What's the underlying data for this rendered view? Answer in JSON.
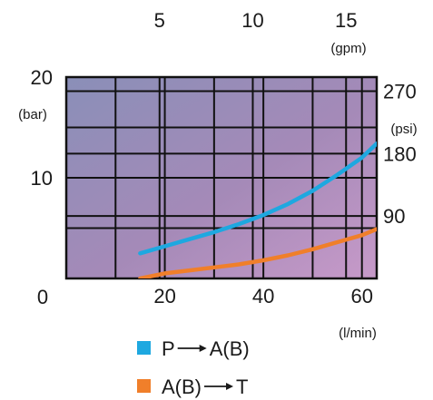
{
  "chart_data": {
    "type": "line",
    "x_bottom": {
      "label": "(l/min)",
      "ticks": [
        "20",
        "40",
        "60"
      ],
      "range": [
        0,
        63
      ]
    },
    "x_top": {
      "label": "(gpm)",
      "ticks": [
        "5",
        "10",
        "15"
      ],
      "tick_positions_lpm": [
        18.93,
        37.85,
        56.78
      ]
    },
    "y_left": {
      "label": "(bar)",
      "ticks": [
        "0",
        "10",
        "20"
      ],
      "range": [
        0,
        20
      ]
    },
    "y_right": {
      "label": "(psi)",
      "ticks": [
        "90",
        "180",
        "270"
      ],
      "tick_positions_bar": [
        6.2,
        12.4,
        18.6
      ]
    },
    "grid": true,
    "series": [
      {
        "name": "P→A(B)",
        "legend_from": "P",
        "legend_to": "A(B)",
        "color": "#1ea8e0",
        "points": [
          [
            15,
            2.5
          ],
          [
            20,
            3.2
          ],
          [
            25,
            3.9
          ],
          [
            30,
            4.6
          ],
          [
            35,
            5.4
          ],
          [
            40,
            6.3
          ],
          [
            45,
            7.4
          ],
          [
            50,
            8.7
          ],
          [
            55,
            10.3
          ],
          [
            60,
            12.0
          ],
          [
            63,
            13.4
          ]
        ]
      },
      {
        "name": "A(B)→T",
        "legend_from": "A(B)",
        "legend_to": "T",
        "color": "#f07f2a",
        "points": [
          [
            15,
            0.0
          ],
          [
            20,
            0.5
          ],
          [
            25,
            0.8
          ],
          [
            30,
            1.1
          ],
          [
            35,
            1.4
          ],
          [
            40,
            1.8
          ],
          [
            45,
            2.3
          ],
          [
            50,
            2.9
          ],
          [
            55,
            3.6
          ],
          [
            60,
            4.3
          ],
          [
            63,
            4.9
          ]
        ]
      }
    ]
  }
}
